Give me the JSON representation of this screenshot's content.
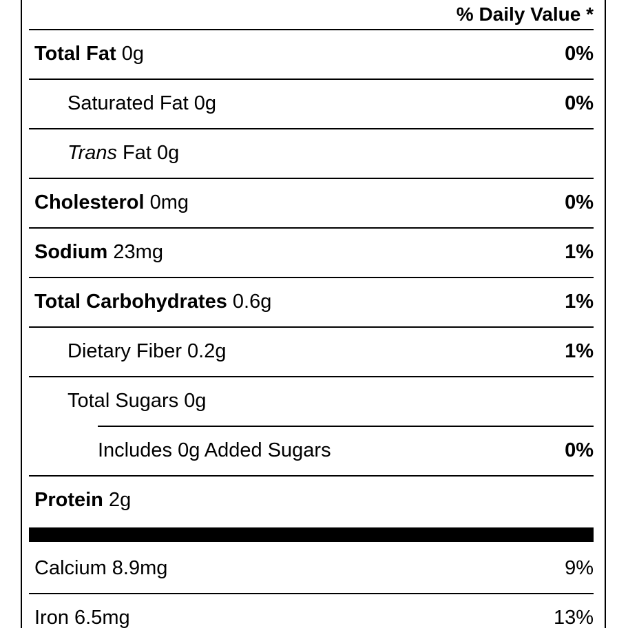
{
  "label": {
    "daily_value_header": "% Daily Value *",
    "rows": [
      {
        "key": "total-fat",
        "indent": 0,
        "sep": "full",
        "segments": [
          {
            "text": "Total Fat",
            "bold": true
          },
          {
            "text": " 0g",
            "bold": false
          }
        ],
        "dv": "0%",
        "dv_bold": true
      },
      {
        "key": "saturated-fat",
        "indent": 1,
        "sep": "full",
        "segments": [
          {
            "text": "Saturated Fat 0g",
            "bold": false
          }
        ],
        "dv": "0%",
        "dv_bold": true
      },
      {
        "key": "trans-fat",
        "indent": 1,
        "sep": "full",
        "segments": [
          {
            "text": "Trans",
            "bold": false,
            "italic": true
          },
          {
            "text": " Fat 0g",
            "bold": false
          }
        ],
        "dv": "",
        "dv_bold": false
      },
      {
        "key": "cholesterol",
        "indent": 0,
        "sep": "full",
        "segments": [
          {
            "text": "Cholesterol",
            "bold": true
          },
          {
            "text": " 0mg",
            "bold": false
          }
        ],
        "dv": "0%",
        "dv_bold": true
      },
      {
        "key": "sodium",
        "indent": 0,
        "sep": "full",
        "segments": [
          {
            "text": "Sodium",
            "bold": true
          },
          {
            "text": " 23mg",
            "bold": false
          }
        ],
        "dv": "1%",
        "dv_bold": true
      },
      {
        "key": "total-carbohydrates",
        "indent": 0,
        "sep": "full",
        "segments": [
          {
            "text": "Total Carbohydrates",
            "bold": true
          },
          {
            "text": " 0.6g",
            "bold": false
          }
        ],
        "dv": "1%",
        "dv_bold": true
      },
      {
        "key": "dietary-fiber",
        "indent": 1,
        "sep": "full",
        "segments": [
          {
            "text": "Dietary Fiber 0.2g",
            "bold": false
          }
        ],
        "dv": "1%",
        "dv_bold": true
      },
      {
        "key": "total-sugars",
        "indent": 1,
        "sep": "full",
        "segments": [
          {
            "text": "Total Sugars 0g",
            "bold": false
          }
        ],
        "dv": "",
        "dv_bold": false
      },
      {
        "key": "added-sugars",
        "indent": 2,
        "sep": "indent",
        "segments": [
          {
            "text": "Includes 0g Added Sugars",
            "bold": false
          }
        ],
        "dv": "0%",
        "dv_bold": true
      },
      {
        "key": "protein",
        "indent": 0,
        "sep": "full",
        "segments": [
          {
            "text": "Protein",
            "bold": true
          },
          {
            "text": " 2g",
            "bold": false
          }
        ],
        "dv": "",
        "dv_bold": false
      },
      {
        "key": "calcium",
        "indent": 0,
        "sep": "thick",
        "segments": [
          {
            "text": "Calcium 8.9mg",
            "bold": false
          }
        ],
        "dv": "9%",
        "dv_bold": false
      },
      {
        "key": "iron",
        "indent": 0,
        "sep": "full",
        "segments": [
          {
            "text": "Iron 6.5mg",
            "bold": false
          }
        ],
        "dv": "13%",
        "dv_bold": false
      }
    ],
    "colors": {
      "text": "#000000",
      "divider": "#000000",
      "background": "#ffffff"
    }
  }
}
